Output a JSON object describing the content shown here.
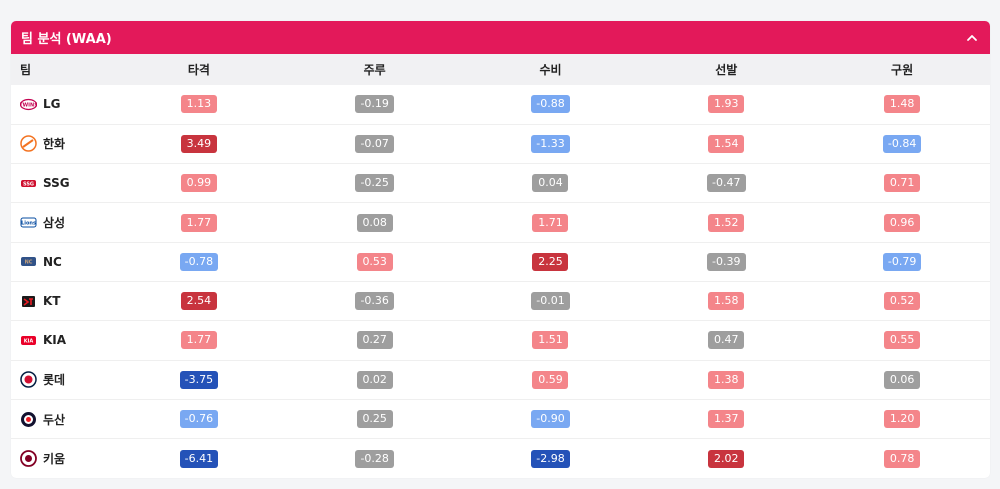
{
  "panel": {
    "title": "팀 분석 (WAA)",
    "collapse_icon": "chevron-up-icon"
  },
  "colors": {
    "header_bg": "#e3195a",
    "pink": "#f4858a",
    "red": "#c8343e",
    "gray": "#9e9e9e",
    "lightblue": "#79a8f2",
    "blue": "#2452b8"
  },
  "table": {
    "headers": [
      "팀",
      "타격",
      "주루",
      "수비",
      "선발",
      "구원"
    ],
    "rows": [
      {
        "team": "LG",
        "logo": "lg-twins-logo",
        "cells": [
          {
            "v": "1.13",
            "c": "pink"
          },
          {
            "v": "-0.19",
            "c": "gray"
          },
          {
            "v": "-0.88",
            "c": "lightblue"
          },
          {
            "v": "1.93",
            "c": "pink"
          },
          {
            "v": "1.48",
            "c": "pink"
          }
        ]
      },
      {
        "team": "한화",
        "logo": "hanwha-eagles-logo",
        "cells": [
          {
            "v": "3.49",
            "c": "red"
          },
          {
            "v": "-0.07",
            "c": "gray"
          },
          {
            "v": "-1.33",
            "c": "lightblue"
          },
          {
            "v": "1.54",
            "c": "pink"
          },
          {
            "v": "-0.84",
            "c": "lightblue"
          }
        ]
      },
      {
        "team": "SSG",
        "logo": "ssg-landers-logo",
        "cells": [
          {
            "v": "0.99",
            "c": "pink"
          },
          {
            "v": "-0.25",
            "c": "gray"
          },
          {
            "v": "0.04",
            "c": "gray"
          },
          {
            "v": "-0.47",
            "c": "gray"
          },
          {
            "v": "0.71",
            "c": "pink"
          }
        ]
      },
      {
        "team": "삼성",
        "logo": "samsung-lions-logo",
        "cells": [
          {
            "v": "1.77",
            "c": "pink"
          },
          {
            "v": "0.08",
            "c": "gray"
          },
          {
            "v": "1.71",
            "c": "pink"
          },
          {
            "v": "1.52",
            "c": "pink"
          },
          {
            "v": "0.96",
            "c": "pink"
          }
        ]
      },
      {
        "team": "NC",
        "logo": "nc-dinos-logo",
        "cells": [
          {
            "v": "-0.78",
            "c": "lightblue"
          },
          {
            "v": "0.53",
            "c": "pink"
          },
          {
            "v": "2.25",
            "c": "red"
          },
          {
            "v": "-0.39",
            "c": "gray"
          },
          {
            "v": "-0.79",
            "c": "lightblue"
          }
        ]
      },
      {
        "team": "KT",
        "logo": "kt-wiz-logo",
        "cells": [
          {
            "v": "2.54",
            "c": "red"
          },
          {
            "v": "-0.36",
            "c": "gray"
          },
          {
            "v": "-0.01",
            "c": "gray"
          },
          {
            "v": "1.58",
            "c": "pink"
          },
          {
            "v": "0.52",
            "c": "pink"
          }
        ]
      },
      {
        "team": "KIA",
        "logo": "kia-tigers-logo",
        "cells": [
          {
            "v": "1.77",
            "c": "pink"
          },
          {
            "v": "0.27",
            "c": "gray"
          },
          {
            "v": "1.51",
            "c": "pink"
          },
          {
            "v": "0.47",
            "c": "gray"
          },
          {
            "v": "0.55",
            "c": "pink"
          }
        ]
      },
      {
        "team": "롯데",
        "logo": "lotte-giants-logo",
        "cells": [
          {
            "v": "-3.75",
            "c": "blue"
          },
          {
            "v": "0.02",
            "c": "gray"
          },
          {
            "v": "0.59",
            "c": "pink"
          },
          {
            "v": "1.38",
            "c": "pink"
          },
          {
            "v": "0.06",
            "c": "gray"
          }
        ]
      },
      {
        "team": "두산",
        "logo": "doosan-bears-logo",
        "cells": [
          {
            "v": "-0.76",
            "c": "lightblue"
          },
          {
            "v": "0.25",
            "c": "gray"
          },
          {
            "v": "-0.90",
            "c": "lightblue"
          },
          {
            "v": "1.37",
            "c": "pink"
          },
          {
            "v": "1.20",
            "c": "pink"
          }
        ]
      },
      {
        "team": "키움",
        "logo": "kiwoom-heroes-logo",
        "cells": [
          {
            "v": "-6.41",
            "c": "blue"
          },
          {
            "v": "-0.28",
            "c": "gray"
          },
          {
            "v": "-2.98",
            "c": "blue"
          },
          {
            "v": "2.02",
            "c": "red"
          },
          {
            "v": "0.78",
            "c": "pink"
          }
        ]
      }
    ]
  }
}
